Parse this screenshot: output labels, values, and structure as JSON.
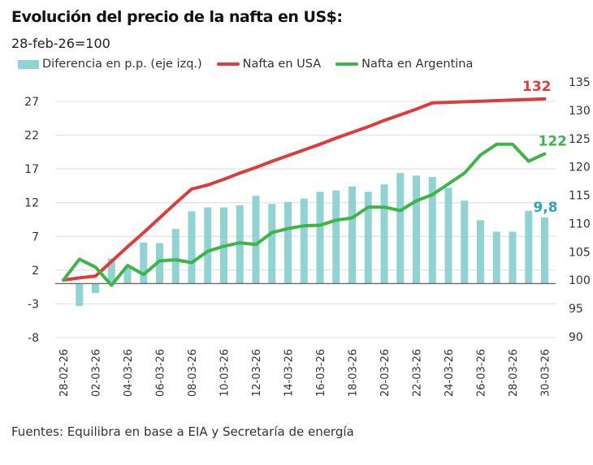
{
  "header": {
    "title": "Evolución del precio de la nafta en US$:",
    "subtitle": "28-feb-26=100"
  },
  "legend": [
    {
      "label": "Diferencia en p.p. (eje izq.)",
      "kind": "bar",
      "color": "#8fd3d3"
    },
    {
      "label": "Nafta en USA",
      "kind": "line",
      "color": "#e03b3b"
    },
    {
      "label": "Nafta en Argentina",
      "kind": "line",
      "color": "#3db548"
    }
  ],
  "footer": "Fuentes: Equilibra en base a EIA y Secretaría de energía",
  "chart_data": {
    "type": "bar+line",
    "title": "Evolución del precio de la nafta en US$:",
    "subtitle": "28-feb-26=100",
    "x": [
      "28-02-26",
      "01-03-26",
      "02-03-26",
      "03-03-26",
      "04-03-26",
      "05-03-26",
      "06-03-26",
      "07-03-26",
      "08-03-26",
      "09-03-26",
      "10-03-26",
      "11-03-26",
      "12-03-26",
      "13-03-26",
      "14-03-26",
      "15-03-26",
      "16-03-26",
      "17-03-26",
      "18-03-26",
      "19-03-26",
      "20-03-26",
      "21-03-26",
      "22-03-26",
      "23-03-26",
      "24-03-26",
      "25-03-26",
      "26-03-26",
      "27-03-26",
      "28-03-26",
      "29-03-26",
      "30-03-26"
    ],
    "x_tick_labels": [
      "28-02-26",
      "02-03-26",
      "04-03-26",
      "06-03-26",
      "08-03-26",
      "10-03-26",
      "12-03-26",
      "14-03-26",
      "16-03-26",
      "18-03-26",
      "20-03-26",
      "22-03-26",
      "24-03-26",
      "26-03-26",
      "28-03-26",
      "30-03-26"
    ],
    "left_axis": {
      "ylim": [
        -8,
        27
      ],
      "ticks": [
        27,
        22,
        17,
        12,
        7,
        2,
        -3,
        -8
      ],
      "label": "Diferencia en p.p."
    },
    "right_axis": {
      "ylim": [
        90,
        135
      ],
      "ticks": [
        135,
        130,
        125,
        120,
        115,
        110,
        105,
        100,
        95,
        90
      ]
    },
    "grid": true,
    "legend_position": "top",
    "series": [
      {
        "name": "Diferencia en p.p. (eje izq.)",
        "type": "bar",
        "axis": "left",
        "color": "#8fd3d3",
        "values": [
          0,
          -3.3,
          -1.4,
          3.7,
          2.4,
          6.1,
          6.0,
          8.1,
          10.7,
          11.3,
          11.3,
          11.6,
          13.0,
          11.8,
          12.1,
          12.6,
          13.6,
          13.8,
          14.4,
          13.6,
          14.7,
          16.4,
          16.0,
          15.8,
          14.2,
          12.3,
          9.4,
          7.7,
          7.7,
          10.8,
          9.8
        ]
      },
      {
        "name": "Nafta en USA",
        "type": "line",
        "axis": "right",
        "color": "#e03b3b",
        "values": [
          100,
          100.4,
          100.7,
          103.3,
          105.9,
          108.4,
          111.0,
          113.6,
          116.1,
          116.8,
          117.8,
          118.9,
          119.9,
          121.0,
          122.0,
          123.0,
          124.0,
          125.1,
          126.1,
          127.1,
          128.2,
          129.2,
          130.2,
          131.3,
          131.4,
          131.5,
          131.6,
          131.7,
          131.8,
          131.9,
          132.0
        ],
        "end_label": "132"
      },
      {
        "name": "Nafta en Argentina",
        "type": "line",
        "axis": "right",
        "color": "#3db548",
        "values": [
          100,
          103.7,
          102.3,
          99.1,
          102.6,
          101.0,
          103.4,
          103.6,
          103.1,
          105.1,
          106.0,
          106.6,
          106.3,
          108.4,
          109.1,
          109.6,
          109.7,
          110.6,
          111.0,
          112.9,
          112.9,
          112.3,
          114.0,
          115.1,
          117.0,
          118.9,
          122.1,
          124.0,
          124.0,
          121.0,
          122.3
        ],
        "end_label": "122"
      }
    ],
    "annotations": [
      {
        "text": "132",
        "series": "Nafta en USA",
        "color": "#e03b3b"
      },
      {
        "text": "122",
        "series": "Nafta en Argentina",
        "color": "#3db548"
      },
      {
        "text": "9,8",
        "series": "Diferencia en p.p. (eje izq.)",
        "color": "#2aa7b1"
      }
    ]
  }
}
